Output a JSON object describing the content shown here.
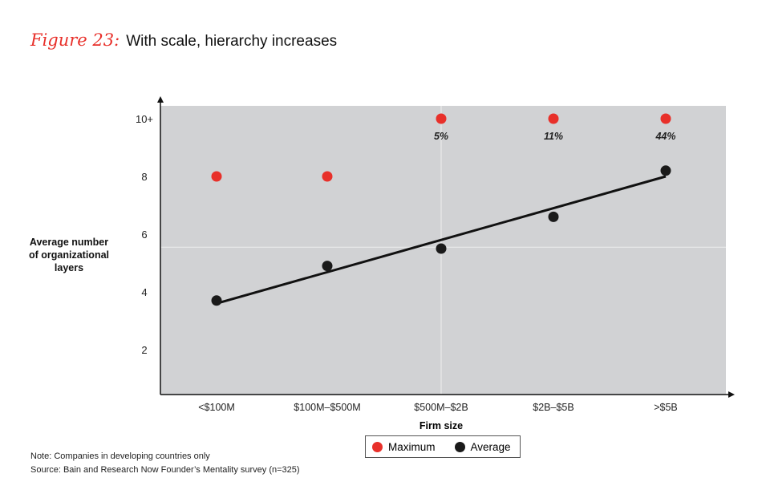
{
  "title": {
    "figure_label": "Figure 23:",
    "text": "With scale, hierarchy increases"
  },
  "chart_data": {
    "type": "scatter",
    "categories": [
      "<$100M",
      "$100M–$500M",
      "$500M–$2B",
      "$2B–$5B",
      ">$5B"
    ],
    "xlabel": "Firm size",
    "ylabel": "Average number of organizational layers",
    "ylim": [
      0.4,
      10.4
    ],
    "yticks": [
      {
        "value": 2,
        "label": "2"
      },
      {
        "value": 4,
        "label": "4"
      },
      {
        "value": 6,
        "label": "6"
      },
      {
        "value": 8,
        "label": "8"
      },
      {
        "value": 10,
        "label": "10+"
      }
    ],
    "grid": false,
    "series": [
      {
        "name": "Maximum",
        "color": "#e8302a",
        "values": [
          8,
          8,
          10,
          10,
          10
        ]
      },
      {
        "name": "Average",
        "color": "#1a1a1a",
        "values": [
          3.7,
          4.9,
          5.5,
          6.6,
          8.2
        ]
      }
    ],
    "trendline": {
      "series": "Average",
      "start": 3.6,
      "end": 8.0
    },
    "annotations": [
      {
        "category": "$500M–$2B",
        "text": "5%"
      },
      {
        "category": "$2B–$5B",
        "text": "11%"
      },
      {
        "category": ">$5B",
        "text": "44%"
      }
    ],
    "legend": "bottom",
    "background": "#d1d2d4"
  },
  "notes": {
    "note": "Note: Companies in developing countries only",
    "source": "Source: Bain and Research Now Founder’s Mentality survey (n=325)"
  }
}
